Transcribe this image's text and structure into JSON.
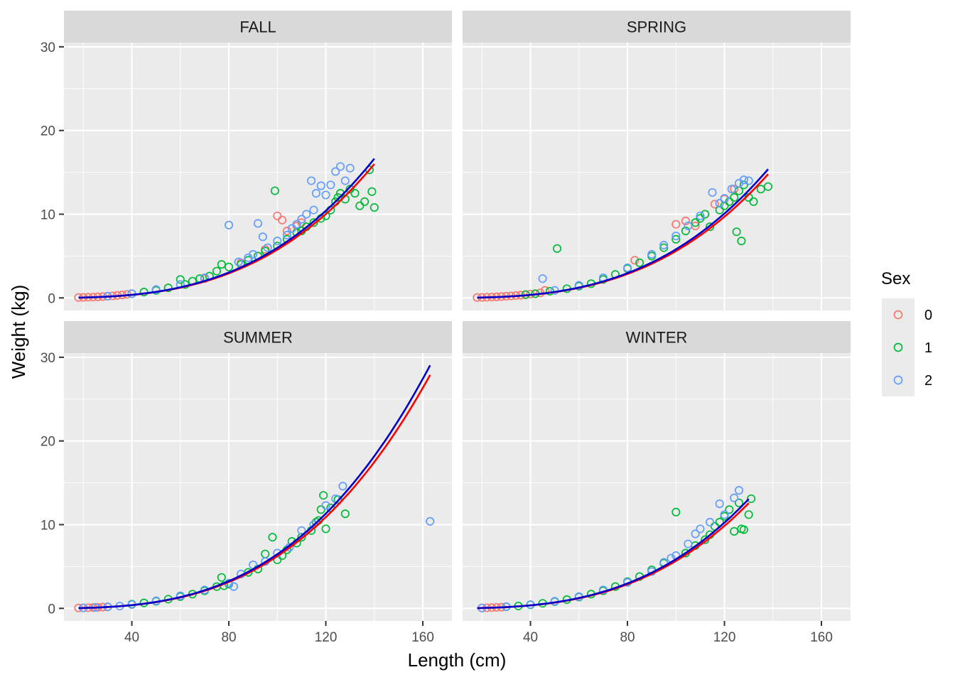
{
  "chart_data": {
    "type": "scatter",
    "facet_by": "season",
    "panels": [
      "FALL",
      "SPRING",
      "SUMMER",
      "WINTER"
    ],
    "facet_layout": "2x2",
    "xlabel": "Length (cm)",
    "ylabel": "Weight (kg)",
    "xlim": [
      12,
      172
    ],
    "ylim": [
      -1.5,
      30.5
    ],
    "xticks": [
      40,
      80,
      120,
      160
    ],
    "yticks": [
      0,
      10,
      20,
      30
    ],
    "grid": true,
    "legend": {
      "title": "Sex",
      "position": "right",
      "entries": [
        {
          "label": "0",
          "color": "#F8766D"
        },
        {
          "label": "1",
          "color": "#00BA38"
        },
        {
          "label": "2",
          "color": "#619CFF"
        }
      ]
    },
    "fit_lines": [
      {
        "color": "#FF0000"
      },
      {
        "color": "#0000CC"
      }
    ],
    "series": [
      {
        "panel": "FALL",
        "points": {
          "0": [
            [
              18,
              0.05
            ],
            [
              20,
              0.06
            ],
            [
              22,
              0.08
            ],
            [
              24,
              0.1
            ],
            [
              26,
              0.13
            ],
            [
              28,
              0.16
            ],
            [
              30,
              0.2
            ],
            [
              32,
              0.24
            ],
            [
              34,
              0.3
            ],
            [
              36,
              0.35
            ],
            [
              38,
              0.42
            ],
            [
              70,
              2.3
            ],
            [
              85,
              4.2
            ],
            [
              95,
              5.8
            ],
            [
              100,
              9.8
            ],
            [
              102,
              9.3
            ],
            [
              104,
              8.0
            ],
            [
              108,
              8.6
            ],
            [
              110,
              9.0
            ]
          ],
          "1": [
            [
              40,
              0.5
            ],
            [
              45,
              0.7
            ],
            [
              50,
              0.9
            ],
            [
              55,
              1.2
            ],
            [
              60,
              2.2
            ],
            [
              62,
              1.6
            ],
            [
              65,
              2.0
            ],
            [
              68,
              2.3
            ],
            [
              72,
              2.6
            ],
            [
              75,
              3.2
            ],
            [
              77,
              4.0
            ],
            [
              80,
              3.7
            ],
            [
              85,
              4.0
            ],
            [
              88,
              4.5
            ],
            [
              92,
              5.0
            ],
            [
              95,
              5.6
            ],
            [
              99,
              12.8
            ],
            [
              100,
              6.2
            ],
            [
              104,
              7.0
            ],
            [
              108,
              7.8
            ],
            [
              110,
              8.0
            ],
            [
              112,
              8.5
            ],
            [
              115,
              9.0
            ],
            [
              118,
              9.5
            ],
            [
              120,
              9.8
            ],
            [
              122,
              10.5
            ],
            [
              124,
              11.5
            ],
            [
              125,
              12.0
            ],
            [
              126,
              12.5
            ],
            [
              128,
              11.8
            ],
            [
              130,
              13.0
            ],
            [
              132,
              12.5
            ],
            [
              134,
              11.0
            ],
            [
              136,
              11.5
            ],
            [
              138,
              15.3
            ],
            [
              139,
              12.7
            ],
            [
              140,
              10.8
            ]
          ],
          "2": [
            [
              30,
              0.2
            ],
            [
              40,
              0.5
            ],
            [
              50,
              1.0
            ],
            [
              60,
              1.6
            ],
            [
              70,
              2.4
            ],
            [
              80,
              8.7
            ],
            [
              84,
              4.3
            ],
            [
              88,
              4.8
            ],
            [
              90,
              5.2
            ],
            [
              92,
              8.9
            ],
            [
              94,
              7.3
            ],
            [
              96,
              6.0
            ],
            [
              100,
              6.8
            ],
            [
              104,
              7.5
            ],
            [
              106,
              8.3
            ],
            [
              108,
              8.8
            ],
            [
              110,
              9.4
            ],
            [
              112,
              10.0
            ],
            [
              114,
              14.0
            ],
            [
              115,
              10.5
            ],
            [
              116,
              12.5
            ],
            [
              118,
              13.4
            ],
            [
              120,
              12.3
            ],
            [
              122,
              13.5
            ],
            [
              124,
              15.1
            ],
            [
              126,
              15.7
            ],
            [
              128,
              14.0
            ],
            [
              130,
              15.5
            ]
          ]
        },
        "fit": {
          "a": 5e-06,
          "b": 3.035,
          "xmax": 140
        }
      },
      {
        "panel": "SPRING",
        "points": {
          "0": [
            [
              18,
              0.05
            ],
            [
              20,
              0.06
            ],
            [
              22,
              0.08
            ],
            [
              24,
              0.1
            ],
            [
              26,
              0.13
            ],
            [
              28,
              0.16
            ],
            [
              30,
              0.2
            ],
            [
              32,
              0.24
            ],
            [
              34,
              0.28
            ],
            [
              36,
              0.33
            ],
            [
              38,
              0.38
            ],
            [
              40,
              0.45
            ],
            [
              42,
              0.5
            ],
            [
              44,
              0.6
            ],
            [
              46,
              0.9
            ],
            [
              83,
              4.5
            ],
            [
              100,
              8.8
            ],
            [
              104,
              9.2
            ],
            [
              108,
              8.6
            ],
            [
              112,
              10.0
            ],
            [
              116,
              11.2
            ],
            [
              120,
              11.8
            ],
            [
              124,
              13.0
            ]
          ],
          "1": [
            [
              38,
              0.4
            ],
            [
              42,
              0.5
            ],
            [
              48,
              0.8
            ],
            [
              51,
              5.9
            ],
            [
              55,
              1.1
            ],
            [
              60,
              1.4
            ],
            [
              65,
              1.7
            ],
            [
              70,
              2.2
            ],
            [
              75,
              2.8
            ],
            [
              80,
              3.5
            ],
            [
              85,
              4.2
            ],
            [
              90,
              5.0
            ],
            [
              95,
              6.0
            ],
            [
              100,
              7.0
            ],
            [
              104,
              8.0
            ],
            [
              108,
              9.0
            ],
            [
              110,
              9.5
            ],
            [
              112,
              10.0
            ],
            [
              114,
              8.5
            ],
            [
              118,
              10.5
            ],
            [
              120,
              11.0
            ],
            [
              122,
              11.5
            ],
            [
              124,
              12.0
            ],
            [
              125,
              7.9
            ],
            [
              126,
              12.8
            ],
            [
              127,
              6.8
            ],
            [
              128,
              13.5
            ],
            [
              130,
              12.0
            ],
            [
              132,
              11.5
            ],
            [
              135,
              13.0
            ],
            [
              138,
              13.3
            ]
          ],
          "2": [
            [
              45,
              2.3
            ],
            [
              50,
              0.9
            ],
            [
              60,
              1.5
            ],
            [
              70,
              2.4
            ],
            [
              80,
              3.6
            ],
            [
              90,
              5.2
            ],
            [
              95,
              6.3
            ],
            [
              100,
              7.4
            ],
            [
              105,
              8.6
            ],
            [
              110,
              9.8
            ],
            [
              115,
              12.6
            ],
            [
              118,
              11.3
            ],
            [
              120,
              11.9
            ],
            [
              123,
              13.0
            ],
            [
              126,
              13.7
            ],
            [
              128,
              14.1
            ],
            [
              130,
              14.0
            ]
          ]
        },
        "fit": {
          "a": 5.2e-06,
          "b": 3.02,
          "xmax": 138
        }
      },
      {
        "panel": "SUMMER",
        "points": {
          "0": [
            [
              18,
              0.05
            ],
            [
              20,
              0.06
            ],
            [
              22,
              0.08
            ],
            [
              24,
              0.1
            ],
            [
              26,
              0.12
            ],
            [
              28,
              0.15
            ],
            [
              30,
              0.18
            ]
          ],
          "1": [
            [
              40,
              0.5
            ],
            [
              45,
              0.65
            ],
            [
              50,
              0.85
            ],
            [
              55,
              1.1
            ],
            [
              60,
              1.4
            ],
            [
              65,
              1.7
            ],
            [
              70,
              2.1
            ],
            [
              75,
              2.6
            ],
            [
              77,
              3.7
            ],
            [
              78,
              2.7
            ],
            [
              80,
              2.9
            ],
            [
              88,
              4.3
            ],
            [
              92,
              4.7
            ],
            [
              95,
              6.5
            ],
            [
              98,
              8.5
            ],
            [
              100,
              5.8
            ],
            [
              102,
              6.3
            ],
            [
              104,
              7.0
            ],
            [
              106,
              8.0
            ],
            [
              108,
              7.8
            ],
            [
              110,
              8.5
            ],
            [
              114,
              9.3
            ],
            [
              116,
              10.3
            ],
            [
              117,
              10.5
            ],
            [
              118,
              11.8
            ],
            [
              119,
              13.5
            ],
            [
              120,
              9.5
            ],
            [
              122,
              12.0
            ],
            [
              125,
              13.0
            ],
            [
              128,
              11.3
            ]
          ],
          "2": [
            [
              20,
              0.06
            ],
            [
              25,
              0.11
            ],
            [
              30,
              0.18
            ],
            [
              35,
              0.27
            ],
            [
              40,
              0.45
            ],
            [
              50,
              0.9
            ],
            [
              60,
              1.5
            ],
            [
              70,
              2.2
            ],
            [
              80,
              3.0
            ],
            [
              82,
              2.6
            ],
            [
              85,
              4.1
            ],
            [
              90,
              5.2
            ],
            [
              95,
              5.6
            ],
            [
              100,
              6.6
            ],
            [
              105,
              7.3
            ],
            [
              110,
              9.3
            ],
            [
              115,
              10.0
            ],
            [
              120,
              12.3
            ],
            [
              124,
              13.1
            ],
            [
              127,
              14.6
            ],
            [
              163,
              10.4
            ]
          ]
        },
        "fit": {
          "a": 4.6e-06,
          "b": 3.07,
          "xmax": 163
        }
      },
      {
        "panel": "WINTER",
        "points": {
          "0": [
            [
              20,
              0.05
            ],
            [
              22,
              0.07
            ],
            [
              24,
              0.09
            ],
            [
              26,
              0.11
            ],
            [
              28,
              0.14
            ]
          ],
          "1": [
            [
              30,
              0.19
            ],
            [
              35,
              0.28
            ],
            [
              40,
              0.42
            ],
            [
              45,
              0.6
            ],
            [
              50,
              0.8
            ],
            [
              55,
              1.05
            ],
            [
              60,
              1.35
            ],
            [
              65,
              1.7
            ],
            [
              70,
              2.1
            ],
            [
              75,
              2.6
            ],
            [
              80,
              3.2
            ],
            [
              85,
              3.8
            ],
            [
              90,
              4.6
            ],
            [
              95,
              5.4
            ],
            [
              100,
              11.5
            ],
            [
              104,
              6.6
            ],
            [
              108,
              7.5
            ],
            [
              112,
              8.2
            ],
            [
              114,
              8.8
            ],
            [
              116,
              9.8
            ],
            [
              118,
              10.3
            ],
            [
              120,
              11.0
            ],
            [
              122,
              11.8
            ],
            [
              124,
              9.2
            ],
            [
              126,
              12.6
            ],
            [
              127,
              9.5
            ],
            [
              128,
              9.4
            ],
            [
              130,
              11.2
            ],
            [
              131,
              13.1
            ]
          ],
          "2": [
            [
              20,
              0.05
            ],
            [
              30,
              0.2
            ],
            [
              40,
              0.45
            ],
            [
              50,
              0.85
            ],
            [
              60,
              1.4
            ],
            [
              70,
              2.2
            ],
            [
              80,
              3.1
            ],
            [
              90,
              4.4
            ],
            [
              95,
              5.5
            ],
            [
              98,
              6.0
            ],
            [
              100,
              6.3
            ],
            [
              105,
              7.7
            ],
            [
              108,
              8.9
            ],
            [
              110,
              9.5
            ],
            [
              114,
              10.3
            ],
            [
              118,
              12.5
            ],
            [
              120,
              11.2
            ],
            [
              124,
              13.2
            ],
            [
              126,
              14.1
            ]
          ]
        },
        "fit": {
          "a": 4.8e-06,
          "b": 3.04,
          "xmax": 130
        }
      }
    ]
  }
}
